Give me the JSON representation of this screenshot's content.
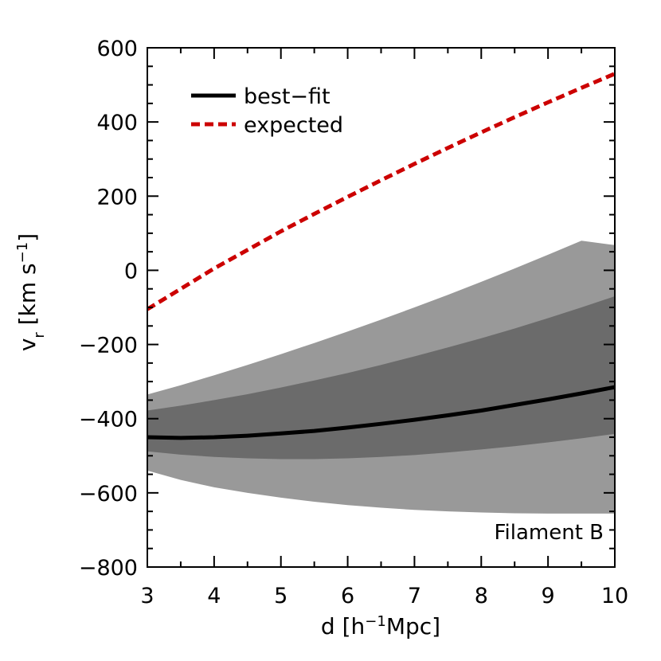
{
  "chart_data": {
    "type": "line",
    "title": "",
    "xlabel": {
      "prefix": "d  [h",
      "sup": "−1",
      "suffix": "Mpc]"
    },
    "ylabel": {
      "v": "v",
      "sub": "r",
      "mid": " [km s",
      "sup": "−1",
      "end": "]"
    },
    "xlim": [
      3,
      10
    ],
    "ylim": [
      -800,
      600
    ],
    "xticks": [
      3,
      4,
      5,
      6,
      7,
      8,
      9,
      10
    ],
    "yticks": [
      -800,
      -600,
      -400,
      -200,
      0,
      200,
      400,
      600
    ],
    "xtick_labels": [
      "3",
      "4",
      "5",
      "6",
      "7",
      "8",
      "9",
      "10"
    ],
    "ytick_labels": [
      "−800",
      "−600",
      "−400",
      "−200",
      "0",
      "200",
      "400",
      "600"
    ],
    "grid": false,
    "legend_position": "top-left",
    "annotation": "Filament B",
    "x": [
      3,
      3.5,
      4,
      4.5,
      5,
      5.5,
      6,
      6.5,
      7,
      7.5,
      8,
      8.5,
      9,
      9.5,
      10
    ],
    "series": [
      {
        "name": "best−fit",
        "style": "solid",
        "color": "#000000",
        "values": [
          -450,
          -452,
          -450,
          -446,
          -440,
          -433,
          -424,
          -414,
          -403,
          -391,
          -378,
          -363,
          -348,
          -332,
          -315
        ]
      },
      {
        "name": "expected",
        "style": "dashed",
        "color": "#cc0000",
        "values": [
          -105,
          -50,
          5,
          55,
          105,
          152,
          198,
          243,
          287,
          330,
          372,
          413,
          453,
          492,
          530
        ]
      }
    ],
    "bands": [
      {
        "level": "outer",
        "color": "#999999",
        "upper": [
          -335,
          -310,
          -283,
          -255,
          -226,
          -196,
          -165,
          -133,
          -100,
          -66,
          -31,
          5,
          42,
          80,
          68
        ],
        "lower": [
          -540,
          -565,
          -585,
          -600,
          -613,
          -624,
          -633,
          -640,
          -646,
          -650,
          -653,
          -655,
          -656,
          -656,
          -656
        ]
      },
      {
        "level": "inner",
        "color": "#6b6b6b",
        "upper": [
          -378,
          -365,
          -350,
          -334,
          -316,
          -297,
          -277,
          -255,
          -232,
          -208,
          -183,
          -157,
          -129,
          -100,
          -70
        ],
        "lower": [
          -488,
          -497,
          -503,
          -507,
          -509,
          -509,
          -507,
          -503,
          -498,
          -491,
          -483,
          -474,
          -464,
          -453,
          -441
        ]
      }
    ]
  }
}
